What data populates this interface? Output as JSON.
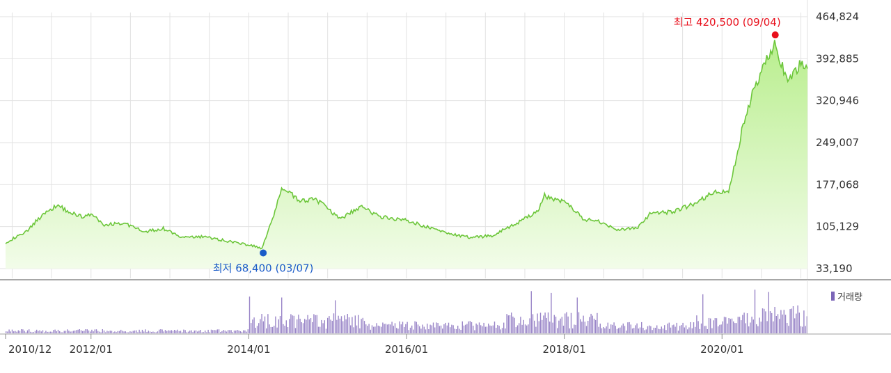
{
  "chart_data": [
    {
      "type": "area",
      "title": "",
      "xlabel": "",
      "ylabel": "",
      "y_ticks": [
        "464,824",
        "392,885",
        "320,946",
        "249,007",
        "177,068",
        "105,129",
        "33,190"
      ],
      "y_tick_values": [
        464824,
        392885,
        320946,
        249007,
        177068,
        105129,
        33190
      ],
      "ylim": [
        33190,
        464824
      ],
      "grid": true,
      "colors": {
        "line": "#6cc63a",
        "fill_top": "#b9ee8e",
        "fill_bottom": "#f2fce9",
        "grid": "#e2e2e2",
        "high": "#e8101c",
        "low": "#1a5cc8"
      },
      "high": {
        "label": "최고 420,500 (09/04)",
        "value": 420500,
        "date": "2020-09-04"
      },
      "low": {
        "label": "최저 68,400 (03/07)",
        "value": 68400,
        "date": "2014-03-07"
      },
      "series": [
        {
          "points": [
            [
              "2010-12",
              78000
            ],
            [
              "2011-03",
              95000
            ],
            [
              "2011-06",
              130000
            ],
            [
              "2011-08",
              142000
            ],
            [
              "2011-10",
              128000
            ],
            [
              "2011-12",
              122000
            ],
            [
              "2012-01",
              126000
            ],
            [
              "2012-03",
              108000
            ],
            [
              "2012-06",
              112000
            ],
            [
              "2012-09",
              96000
            ],
            [
              "2012-12",
              102000
            ],
            [
              "2013-03",
              86000
            ],
            [
              "2013-06",
              88000
            ],
            [
              "2013-09",
              82000
            ],
            [
              "2013-12",
              76000
            ],
            [
              "2014-03",
              68400
            ],
            [
              "2014-05",
              130000
            ],
            [
              "2014-06",
              172000
            ],
            [
              "2014-09",
              148000
            ],
            [
              "2014-11",
              154000
            ],
            [
              "2015-03",
              118000
            ],
            [
              "2015-06",
              140000
            ],
            [
              "2015-09",
              122000
            ],
            [
              "2016-01",
              116000
            ],
            [
              "2016-04",
              105000
            ],
            [
              "2016-08",
              92000
            ],
            [
              "2016-11",
              86000
            ],
            [
              "2017-02",
              90000
            ],
            [
              "2017-06",
              112000
            ],
            [
              "2017-09",
              132000
            ],
            [
              "2017-10",
              158000
            ],
            [
              "2018-01",
              148000
            ],
            [
              "2018-04",
              118000
            ],
            [
              "2018-07",
              112000
            ],
            [
              "2018-09",
              100000
            ],
            [
              "2018-12",
              102000
            ],
            [
              "2019-02",
              126000
            ],
            [
              "2019-06",
              132000
            ],
            [
              "2019-09",
              146000
            ],
            [
              "2019-12",
              165000
            ],
            [
              "2020-02",
              163000
            ],
            [
              "2020-04",
              268000
            ],
            [
              "2020-06",
              345000
            ],
            [
              "2020-08",
              398000
            ],
            [
              "2020-09",
              420500
            ],
            [
              "2020-11",
              348000
            ],
            [
              "2021-01",
              386000
            ],
            [
              "2021-02",
              376000
            ]
          ]
        }
      ]
    },
    {
      "type": "bar",
      "title": "",
      "legend": "거래량",
      "x_ticks": [
        "2010/12",
        "2012/01",
        "2014/01",
        "2016/01",
        "2018/01",
        "2020/01"
      ],
      "colors": {
        "bar": "#9a86c8",
        "legend_swatch": "#7c66b8"
      },
      "periods": [
        [
          "2010-12",
          "2013-12",
          0.08
        ],
        [
          "2014-01",
          "2015-06",
          0.38
        ],
        [
          "2015-07",
          "2017-03",
          0.24
        ],
        [
          "2017-04",
          "2018-05",
          0.42
        ],
        [
          "2018-06",
          "2019-08",
          0.22
        ],
        [
          "2019-09",
          "2020-03",
          0.35
        ],
        [
          "2020-04",
          "2021-02",
          0.55
        ]
      ],
      "peaks": [
        [
          "2014-01",
          0.8
        ],
        [
          "2014-06",
          0.78
        ],
        [
          "2015-02",
          0.72
        ],
        [
          "2017-08",
          0.92
        ],
        [
          "2017-11",
          0.88
        ],
        [
          "2018-03",
          0.78
        ],
        [
          "2019-10",
          0.85
        ],
        [
          "2020-06",
          0.95
        ],
        [
          "2020-08",
          0.9
        ]
      ]
    }
  ]
}
